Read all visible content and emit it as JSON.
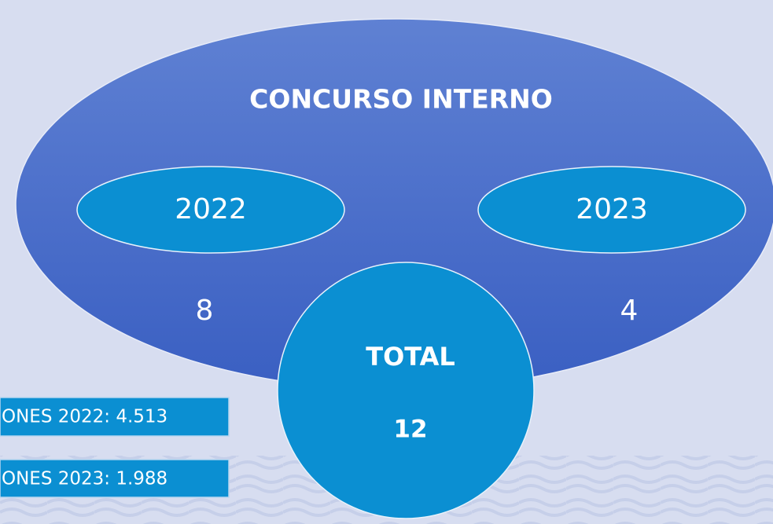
{
  "title": "CONCURSO INTERNO",
  "years": [
    {
      "label": "2022",
      "count": "8"
    },
    {
      "label": "2023",
      "count": "4"
    }
  ],
  "total": {
    "label": "TOTAL",
    "value": "12"
  },
  "notes": [
    "ONES 2022: 4.513",
    "ONES 2023: 1.988"
  ]
}
